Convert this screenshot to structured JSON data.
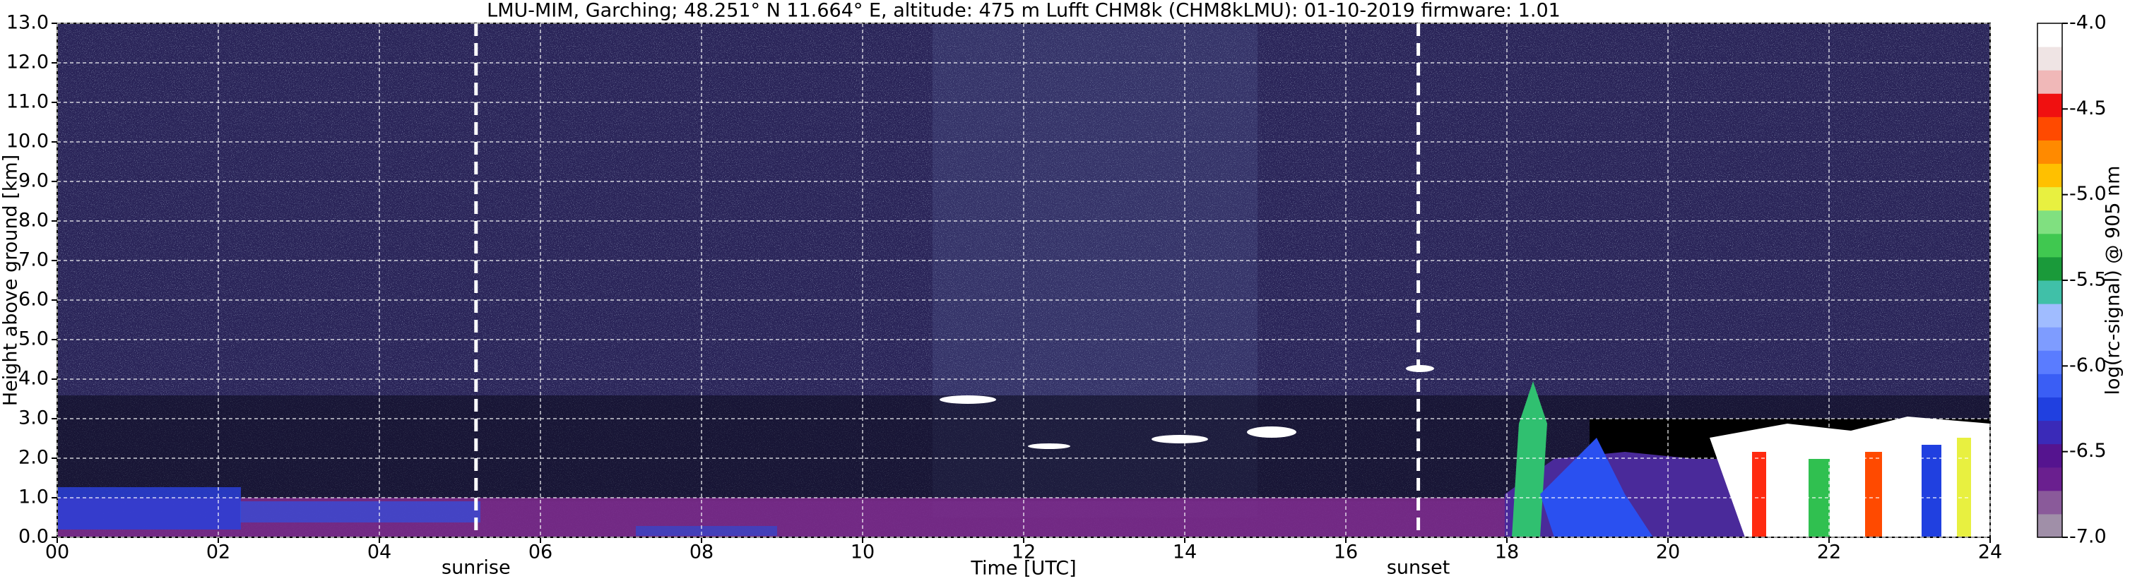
{
  "chart_data": {
    "type": "heatmap",
    "title": "LMU-MIM, Garching; 48.251° N 11.664° E, altitude: 475 m    Lufft CHM8k (CHM8kLMU): 01-10-2019    firmware: 1.01",
    "x_label": "Time [UTC]",
    "y_label": "Height above ground [km]",
    "colorbar_label": "log(rc-signal) @ 905 nm",
    "xlim": [
      0,
      24
    ],
    "xticks": [
      {
        "value": 0,
        "label": "00"
      },
      {
        "value": 2,
        "label": "02"
      },
      {
        "value": 4,
        "label": "04"
      },
      {
        "value": 6,
        "label": "06"
      },
      {
        "value": 8,
        "label": "08"
      },
      {
        "value": 10,
        "label": "10"
      },
      {
        "value": 12,
        "label": "12"
      },
      {
        "value": 14,
        "label": "14"
      },
      {
        "value": 16,
        "label": "16"
      },
      {
        "value": 18,
        "label": "18"
      },
      {
        "value": 20,
        "label": "20"
      },
      {
        "value": 22,
        "label": "22"
      },
      {
        "value": 24,
        "label": "24"
      }
    ],
    "ylim": [
      0,
      13
    ],
    "yticks": [
      {
        "value": 0,
        "label": "0.0"
      },
      {
        "value": 1,
        "label": "1.0"
      },
      {
        "value": 2,
        "label": "2.0"
      },
      {
        "value": 3,
        "label": "3.0"
      },
      {
        "value": 4,
        "label": "4.0"
      },
      {
        "value": 5,
        "label": "5.0"
      },
      {
        "value": 6,
        "label": "6.0"
      },
      {
        "value": 7,
        "label": "7.0"
      },
      {
        "value": 8,
        "label": "8.0"
      },
      {
        "value": 9,
        "label": "9.0"
      },
      {
        "value": 10,
        "label": "10.0"
      },
      {
        "value": 11,
        "label": "11.0"
      },
      {
        "value": 12,
        "label": "12.0"
      },
      {
        "value": 13,
        "label": "13.0"
      }
    ],
    "clim": [
      -7,
      -4
    ],
    "cticks": [
      {
        "value": -7,
        "label": "-7.0"
      },
      {
        "value": -6.5,
        "label": "-6.5"
      },
      {
        "value": -6,
        "label": "-6.0"
      },
      {
        "value": -5.5,
        "label": "-5.5"
      },
      {
        "value": -5,
        "label": "-5.0"
      },
      {
        "value": -4.5,
        "label": "-4.5"
      },
      {
        "value": -4,
        "label": "-4.0"
      }
    ],
    "colormap": [
      "#a08fa8",
      "#8a5a9a",
      "#6a1f8f",
      "#55148f",
      "#3a2ab8",
      "#2040e0",
      "#3a5ef5",
      "#5a7cff",
      "#7e9cff",
      "#a0bcff",
      "#40c0a8",
      "#1a9a3a",
      "#40c850",
      "#80e080",
      "#e8f040",
      "#ffc000",
      "#ff8a00",
      "#ff4a00",
      "#f01010",
      "#f0b8b8",
      "#efe4e4",
      "#ffffff"
    ],
    "grid": true,
    "annotations": [
      {
        "label": "sunrise",
        "x": 5.2
      },
      {
        "label": "sunset",
        "x": 16.9
      }
    ]
  }
}
